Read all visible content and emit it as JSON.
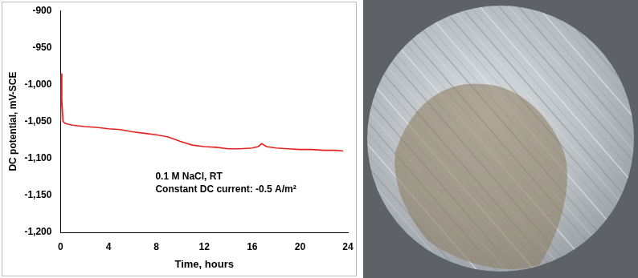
{
  "chart_data": {
    "type": "line",
    "x_label": "Time, hours",
    "y_label": "DC potential, mV-SCE",
    "x": [
      0,
      0.05,
      0.1,
      0.2,
      0.4,
      1,
      2,
      3,
      4,
      5,
      6,
      7,
      8,
      9,
      10,
      11,
      12,
      13,
      14,
      15,
      16,
      16.5,
      16.8,
      17.2,
      18,
      19,
      20,
      21,
      22,
      23,
      23.6
    ],
    "values": [
      -1050,
      -985,
      -1020,
      -1050,
      -1053,
      -1055,
      -1057,
      -1058,
      -1060,
      -1061,
      -1064,
      -1066,
      -1068,
      -1071,
      -1077,
      -1082,
      -1084,
      -1085,
      -1087,
      -1087,
      -1086,
      -1084,
      -1080,
      -1084,
      -1086,
      -1087,
      -1088,
      -1088,
      -1089,
      -1089,
      -1090
    ],
    "color": "#e8211f",
    "xlim": [
      0,
      24
    ],
    "xticks": [
      0,
      4,
      8,
      12,
      16,
      20,
      24
    ],
    "ylim": [
      -1200,
      -900
    ],
    "yticks": [
      -1200,
      -1150,
      -1100,
      -1050,
      -1000,
      -950,
      -900
    ],
    "grid": false,
    "annotations": [
      "0.1 M NaCl, RT",
      "Constant DC current: -0.5 A/m²"
    ]
  }
}
